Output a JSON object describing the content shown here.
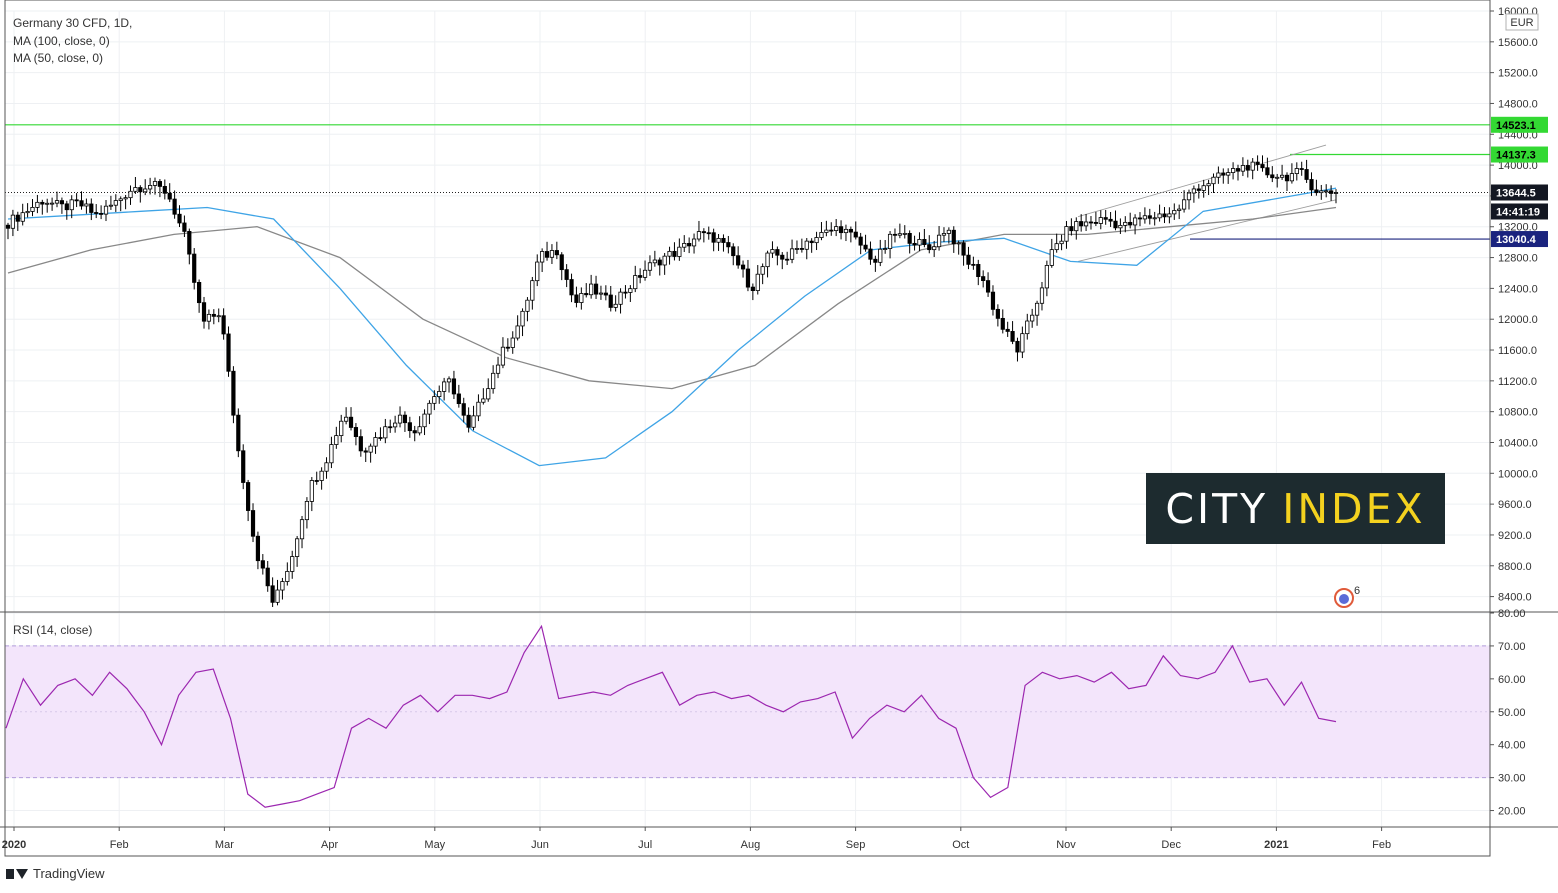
{
  "legend": {
    "symbol": "Germany 30 CFD, 1D,",
    "ma100": "MA (100, close, 0)",
    "ma50": "MA (50, close, 0)",
    "rsi": "RSI (14, close)"
  },
  "currency": "EUR",
  "brand": "TradingView",
  "watermark": {
    "part1": "CITY",
    "part2": "INDEX"
  },
  "badge": "6",
  "price_axis_ticks": [
    "16000.0",
    "15600.0",
    "15200.0",
    "14800.0",
    "14400.0",
    "14000.0",
    "13600.0",
    "13200.0",
    "12800.0",
    "12400.0",
    "12000.0",
    "11600.0",
    "11200.0",
    "10800.0",
    "10400.0",
    "10000.0",
    "9600.0",
    "9200.0",
    "8800.0",
    "8400.0"
  ],
  "rsi_axis_ticks": [
    "80.00",
    "70.00",
    "60.00",
    "50.00",
    "40.00",
    "30.00",
    "20.00"
  ],
  "time_ticks": [
    "2020",
    "Feb",
    "Mar",
    "Apr",
    "May",
    "Jun",
    "Jul",
    "Aug",
    "Sep",
    "Oct",
    "Nov",
    "Dec",
    "2021",
    "Feb"
  ],
  "price_tags": {
    "resistance_1": "14523.1",
    "resistance_2": "14137.3",
    "last": "13644.5",
    "countdown": "14:41:19",
    "support": "13040.4"
  },
  "colors": {
    "up": "#ffffff",
    "down": "#000000",
    "ma50": "#3fa4e6",
    "ma100": "#888888",
    "level_green": "#33d933",
    "level_navy": "#1a237e",
    "rsi_line": "#9c27b0",
    "rsi_band": "#f3e5fb"
  },
  "chart_data": [
    {
      "type": "candlestick",
      "title": "Germany 30 CFD, 1D,",
      "ylim": [
        8200,
        16000
      ],
      "x": [
        "2020-01",
        "2020-02",
        "2020-03",
        "2020-04",
        "2020-05",
        "2020-06",
        "2020-07",
        "2020-08",
        "2020-09",
        "2020-10",
        "2020-11",
        "2020-12",
        "2021-01",
        "2021-02"
      ],
      "series": [
        {
          "name": "Germany 30 CFD",
          "close_path": [
            13250,
            13400,
            13550,
            13450,
            13500,
            13350,
            13500,
            13700,
            13750,
            13650,
            13050,
            11950,
            12100,
            10300,
            9000,
            8300,
            8900,
            9800,
            10200,
            10800,
            10300,
            10500,
            10750,
            10550,
            11000,
            11200,
            10550,
            11100,
            11600,
            12000,
            12800,
            12900,
            12200,
            12400,
            12200,
            12400,
            12650,
            12800,
            12900,
            13100,
            13050,
            12800,
            12400,
            12850,
            12800,
            13000,
            13100,
            13200,
            13000,
            12750,
            13100,
            13050,
            12900,
            13200,
            12800,
            12550,
            11950,
            11600,
            12150,
            12900,
            13200,
            13250,
            13300,
            13200,
            13300,
            13350,
            13400,
            13700,
            13800,
            13900,
            14000,
            13900,
            13850,
            13900,
            13650,
            13644.5
          ]
        },
        {
          "name": "MA (50, close, 0)",
          "path": [
            13300,
            13350,
            13400,
            13450,
            13300,
            12400,
            11400,
            10550,
            10100,
            10200,
            10800,
            11600,
            12300,
            12900,
            13000,
            13050,
            12750,
            12700,
            13400,
            13550,
            13700
          ]
        },
        {
          "name": "MA (100, close, 0)",
          "path": [
            12600,
            12900,
            13100,
            13200,
            12800,
            12000,
            11500,
            11200,
            11100,
            11400,
            12200,
            12900,
            13100,
            13100,
            13200,
            13300,
            13450
          ]
        }
      ],
      "levels": [
        14523.1,
        14137.3,
        13644.5,
        13040.4
      ]
    },
    {
      "type": "line",
      "title": "RSI (14, close)",
      "ylim": [
        15,
        80
      ],
      "series": [
        {
          "name": "RSI (14, close)",
          "values": [
            45,
            60,
            52,
            58,
            60,
            55,
            62,
            57,
            50,
            40,
            55,
            62,
            63,
            48,
            25,
            21,
            22,
            23,
            25,
            27,
            45,
            48,
            45,
            52,
            55,
            50,
            55,
            55,
            54,
            56,
            68,
            76,
            54,
            55,
            56,
            55,
            58,
            60,
            62,
            52,
            55,
            56,
            54,
            55,
            52,
            50,
            53,
            54,
            56,
            42,
            48,
            52,
            50,
            55,
            48,
            45,
            30,
            24,
            27,
            58,
            62,
            60,
            61,
            59,
            62,
            57,
            58,
            67,
            61,
            60,
            62,
            70,
            59,
            60,
            52,
            59,
            48,
            47
          ]
        }
      ],
      "band": [
        30,
        70
      ]
    }
  ]
}
